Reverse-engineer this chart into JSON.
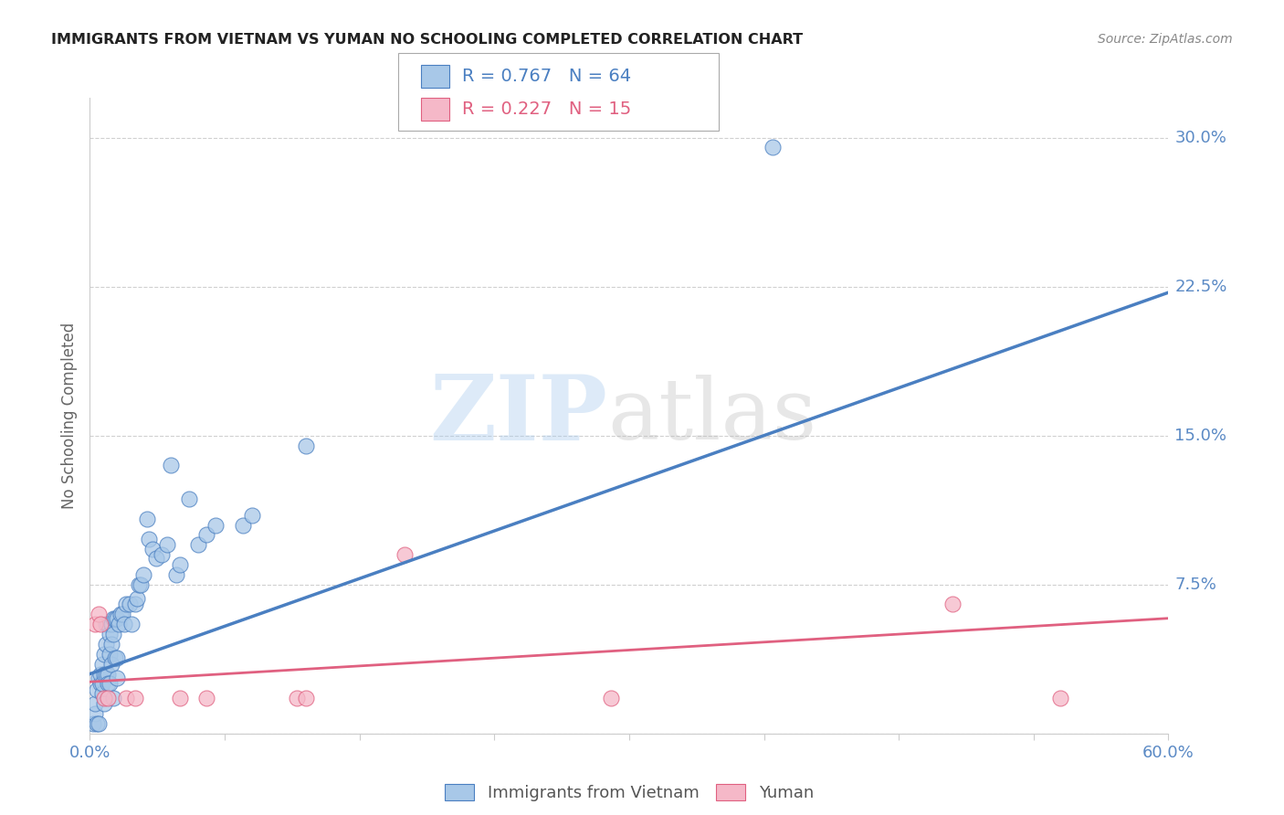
{
  "title": "IMMIGRANTS FROM VIETNAM VS YUMAN NO SCHOOLING COMPLETED CORRELATION CHART",
  "source": "Source: ZipAtlas.com",
  "ylabel": "No Schooling Completed",
  "legend_labels": [
    "Immigrants from Vietnam",
    "Yuman"
  ],
  "legend_r1": "R = 0.767",
  "legend_n1": "N = 64",
  "legend_r2": "R = 0.227",
  "legend_n2": "N = 15",
  "xlim": [
    0.0,
    0.6
  ],
  "ylim": [
    0.0,
    0.32
  ],
  "xticks": [
    0.0,
    0.075,
    0.15,
    0.225,
    0.3,
    0.375,
    0.45,
    0.525,
    0.6
  ],
  "xtick_labels": [
    "0.0%",
    "",
    "",
    "",
    "",
    "",
    "",
    "",
    "60.0%"
  ],
  "yticks": [
    0.0,
    0.075,
    0.15,
    0.225,
    0.3
  ],
  "ytick_labels": [
    "",
    "7.5%",
    "15.0%",
    "22.5%",
    "30.0%"
  ],
  "blue_color": "#a8c8e8",
  "blue_edge_color": "#4a7fc1",
  "pink_color": "#f5b8c8",
  "pink_edge_color": "#e06080",
  "blue_line_color": "#4a7fc1",
  "pink_line_color": "#e06080",
  "blue_scatter": [
    [
      0.002,
      0.005
    ],
    [
      0.003,
      0.01
    ],
    [
      0.003,
      0.015
    ],
    [
      0.004,
      0.022
    ],
    [
      0.004,
      0.005
    ],
    [
      0.005,
      0.028
    ],
    [
      0.005,
      0.005
    ],
    [
      0.006,
      0.025
    ],
    [
      0.006,
      0.03
    ],
    [
      0.007,
      0.02
    ],
    [
      0.007,
      0.035
    ],
    [
      0.007,
      0.025
    ],
    [
      0.008,
      0.04
    ],
    [
      0.008,
      0.03
    ],
    [
      0.008,
      0.015
    ],
    [
      0.009,
      0.055
    ],
    [
      0.009,
      0.045
    ],
    [
      0.009,
      0.03
    ],
    [
      0.01,
      0.055
    ],
    [
      0.01,
      0.03
    ],
    [
      0.01,
      0.025
    ],
    [
      0.011,
      0.05
    ],
    [
      0.011,
      0.04
    ],
    [
      0.011,
      0.025
    ],
    [
      0.012,
      0.055
    ],
    [
      0.012,
      0.045
    ],
    [
      0.012,
      0.035
    ],
    [
      0.013,
      0.058
    ],
    [
      0.013,
      0.05
    ],
    [
      0.013,
      0.018
    ],
    [
      0.014,
      0.058
    ],
    [
      0.014,
      0.038
    ],
    [
      0.015,
      0.058
    ],
    [
      0.015,
      0.038
    ],
    [
      0.015,
      0.028
    ],
    [
      0.016,
      0.055
    ],
    [
      0.017,
      0.06
    ],
    [
      0.018,
      0.06
    ],
    [
      0.019,
      0.055
    ],
    [
      0.02,
      0.065
    ],
    [
      0.022,
      0.065
    ],
    [
      0.023,
      0.055
    ],
    [
      0.025,
      0.065
    ],
    [
      0.026,
      0.068
    ],
    [
      0.027,
      0.075
    ],
    [
      0.028,
      0.075
    ],
    [
      0.03,
      0.08
    ],
    [
      0.032,
      0.108
    ],
    [
      0.033,
      0.098
    ],
    [
      0.035,
      0.093
    ],
    [
      0.037,
      0.088
    ],
    [
      0.04,
      0.09
    ],
    [
      0.043,
      0.095
    ],
    [
      0.045,
      0.135
    ],
    [
      0.048,
      0.08
    ],
    [
      0.05,
      0.085
    ],
    [
      0.055,
      0.118
    ],
    [
      0.06,
      0.095
    ],
    [
      0.065,
      0.1
    ],
    [
      0.07,
      0.105
    ],
    [
      0.085,
      0.105
    ],
    [
      0.09,
      0.11
    ],
    [
      0.12,
      0.145
    ],
    [
      0.38,
      0.295
    ]
  ],
  "pink_scatter": [
    [
      0.003,
      0.055
    ],
    [
      0.005,
      0.06
    ],
    [
      0.006,
      0.055
    ],
    [
      0.008,
      0.018
    ],
    [
      0.01,
      0.018
    ],
    [
      0.02,
      0.018
    ],
    [
      0.025,
      0.018
    ],
    [
      0.05,
      0.018
    ],
    [
      0.065,
      0.018
    ],
    [
      0.115,
      0.018
    ],
    [
      0.12,
      0.018
    ],
    [
      0.175,
      0.09
    ],
    [
      0.29,
      0.018
    ],
    [
      0.48,
      0.065
    ],
    [
      0.54,
      0.018
    ]
  ],
  "blue_line_pts": [
    [
      0.0,
      0.03
    ],
    [
      0.6,
      0.222
    ]
  ],
  "pink_line_pts": [
    [
      0.0,
      0.026
    ],
    [
      0.6,
      0.058
    ]
  ],
  "background_color": "#ffffff",
  "grid_color": "#d0d0d0",
  "tick_label_color": "#5b8ac5",
  "ylabel_color": "#666666",
  "title_color": "#222222",
  "source_color": "#888888",
  "watermark_zip_color": "#aaccee",
  "watermark_atlas_color": "#bbbbbb"
}
